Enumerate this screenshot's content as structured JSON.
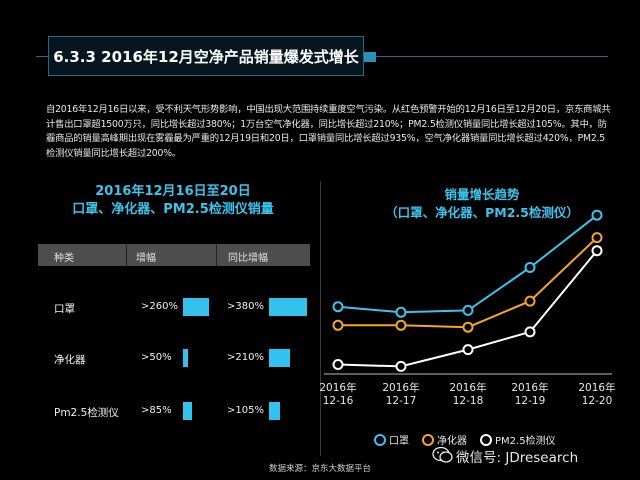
{
  "header": {
    "title": "6.3.3 2016年12月空净产品销量爆发式增长"
  },
  "description": "自2016年12月16日以来，受不利天气形势影响，中国出现大范围持续重度空气污染。从红色预警开始的12月16日至12月20日，京东商城共计售出口罩超1500万只，同比增长超过380%；1万台空气净化器，同比增长超过210%；PM2.5检测仪销量同比增长超过105%。其中，防霾商品的销量高峰期出现在雾霾最为严重的12月19日和20日，口罩销量同比增长超过935%，空气净化器销量同比增长超过420%，PM2.5检测仪销量同比增长超过200%。",
  "table": {
    "title_line1": "2016年12月16日至20日",
    "title_line2": "口罩、净化器、PM2.5检测仪销量",
    "headers": [
      "种类",
      "增幅",
      "同比增幅"
    ],
    "rows": [
      {
        "label": "口罩",
        "growth": ">260%",
        "growth_value": 260,
        "yoy": ">380%",
        "yoy_value": 380
      },
      {
        "label": "净化器",
        "growth": ">50%",
        "growth_value": 50,
        "yoy": ">210%",
        "yoy_value": 210
      },
      {
        "label": "Pm2.5检测仪",
        "growth": ">85%",
        "growth_value": 85,
        "yoy": ">105%",
        "yoy_value": 105
      }
    ]
  },
  "chart_data": {
    "type": "line",
    "title_line1": "销量增长趋势",
    "title_line2": "（口罩、净化器、PM2.5检测仪）",
    "categories": [
      "2016年 12-16",
      "2016年 12-17",
      "2016年 12-18",
      "2016年 12-19",
      "2016年 12-20"
    ],
    "category_lines": [
      [
        "2016年",
        "12-16"
      ],
      [
        "2016年",
        "12-17"
      ],
      [
        "2016年",
        "12-18"
      ],
      [
        "2016年",
        "12-19"
      ],
      [
        "2016年",
        "12-20"
      ]
    ],
    "series": [
      {
        "name": "口罩",
        "color": "#3cc4ec",
        "values": [
          70,
          64,
          66,
          112,
          168
        ]
      },
      {
        "name": "净化器",
        "color": "#f5a623",
        "values": [
          50,
          50,
          48,
          76,
          144
        ]
      },
      {
        "name": "PM2.5检测仪",
        "color": "#ffffff",
        "values": [
          8,
          6,
          24,
          43,
          130
        ]
      }
    ],
    "ylim": [
      0,
      180
    ],
    "grid": false,
    "legend": "bottom"
  },
  "footer": {
    "source": "数据来源：京东大数据平台",
    "watermark": "微信号: JDresearch"
  }
}
